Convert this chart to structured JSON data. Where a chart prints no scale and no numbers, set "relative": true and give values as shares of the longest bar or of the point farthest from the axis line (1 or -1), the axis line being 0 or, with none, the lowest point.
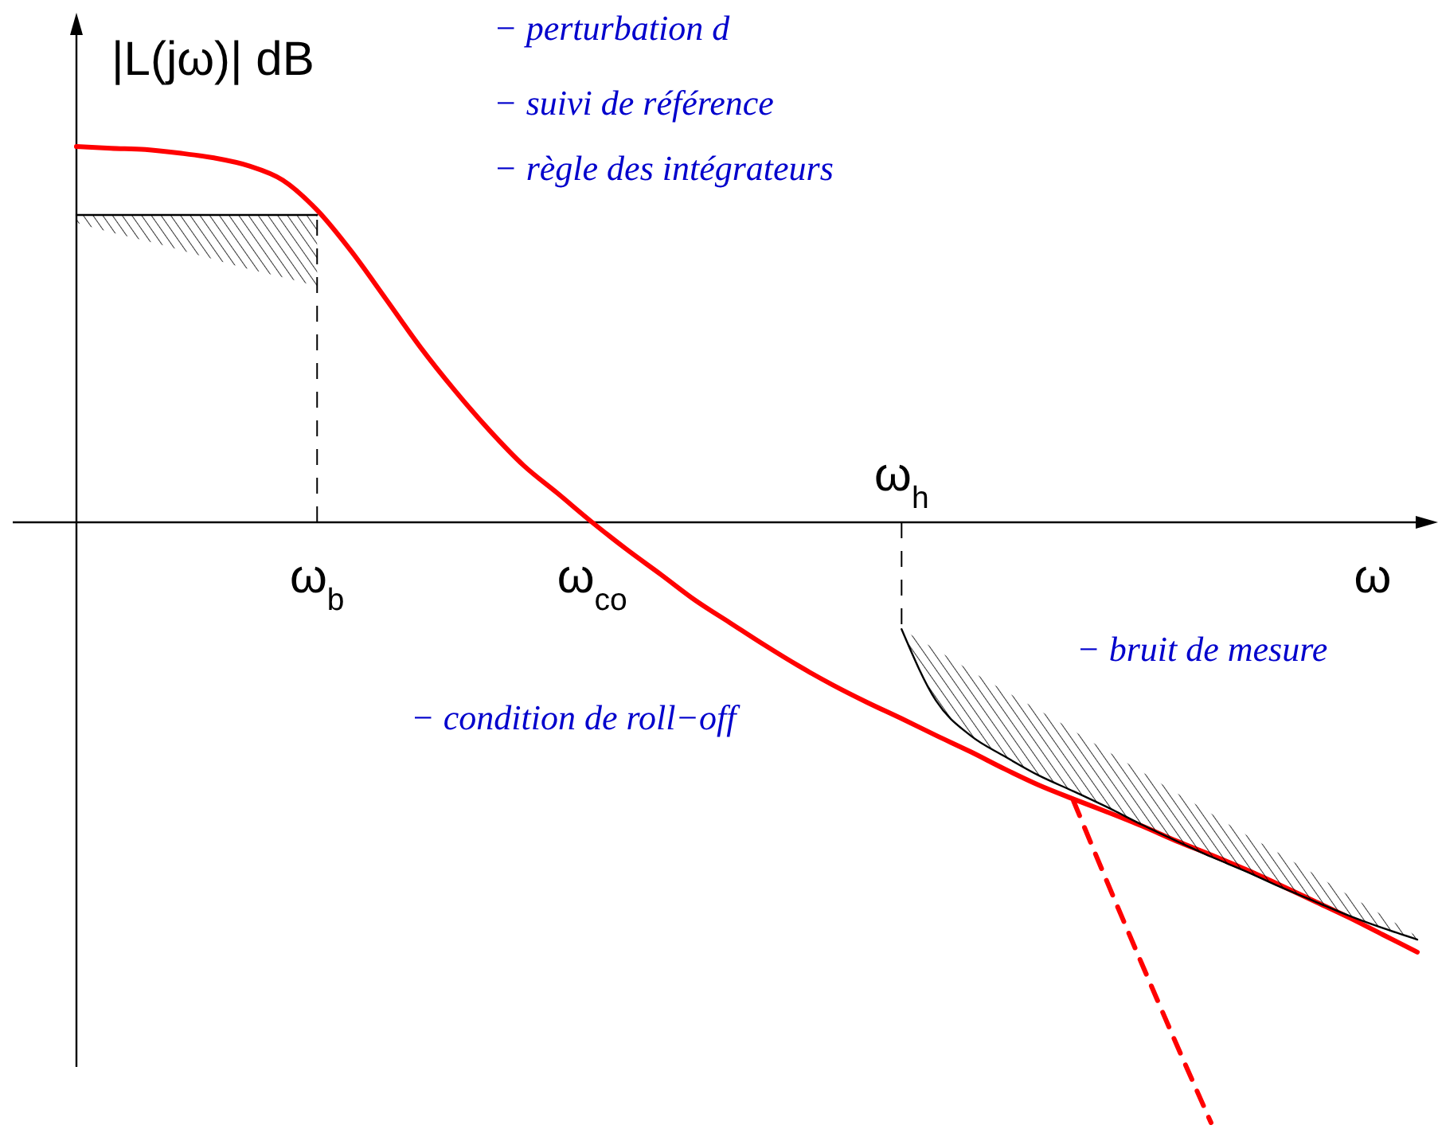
{
  "chart_data": {
    "type": "line",
    "relative": true,
    "ylabel": "|L(jω)| dB",
    "xlabel": "ω",
    "categories": [
      null,
      null,
      null,
      null,
      null,
      null,
      null,
      "ω$_{b}$",
      null,
      null,
      null,
      null,
      null,
      null,
      null,
      "ω$_{co}$",
      null,
      null,
      null,
      null,
      null,
      null,
      null,
      null,
      "ω$_{h}$",
      null,
      null,
      null,
      null,
      null,
      null,
      null,
      null,
      null,
      null,
      null,
      null,
      null,
      null,
      null
    ],
    "series": [
      {
        "color": "#ff0000",
        "line_style": "solid",
        "values": [
          0.626,
          0.623,
          0.621,
          0.615,
          0.607,
          0.594,
          0.57,
          0.52,
          0.451,
          0.372,
          0.292,
          0.22,
          0.154,
          0.095,
          0.048,
          0,
          -0.045,
          -0.087,
          -0.13,
          -0.167,
          -0.204,
          -0.239,
          -0.271,
          -0.3,
          -0.327,
          -0.355,
          -0.382,
          -0.411,
          -0.438,
          -0.461,
          -0.483,
          -0.506,
          -0.531,
          -0.554,
          -0.578,
          -0.604,
          -0.631,
          -0.658,
          -0.687,
          -0.716
        ]
      },
      {
        "color": "#ff0000",
        "line_style": "dashed",
        "values": [
          null,
          null,
          null,
          null,
          null,
          null,
          null,
          null,
          null,
          null,
          null,
          null,
          null,
          null,
          null,
          null,
          null,
          null,
          null,
          null,
          null,
          null,
          null,
          null,
          null,
          null,
          null,
          null,
          null,
          -0.464,
          -0.602,
          -0.737,
          -0.87,
          -1,
          null,
          null,
          null,
          null,
          null,
          null
        ]
      },
      {
        "color": "#000000",
        "line_style": "solid",
        "values": [
          0.512,
          0.512,
          0.512,
          0.512,
          0.512,
          0.512,
          0.512,
          0.512,
          null,
          null,
          null,
          null,
          null,
          null,
          null,
          null,
          null,
          null,
          null,
          null,
          null,
          null,
          null,
          null,
          null,
          null,
          null,
          null,
          null,
          null,
          null,
          null,
          null,
          null,
          null,
          null,
          null,
          null,
          null,
          null
        ],
        "lower": [
          0.499,
          0.483,
          0.469,
          0.454,
          0.438,
          0.422,
          0.408,
          0.393,
          null,
          null,
          null,
          null,
          null,
          null,
          null,
          null,
          null,
          null,
          null,
          null,
          null,
          null,
          null,
          null,
          null,
          null,
          null,
          null,
          null,
          null,
          null,
          null,
          null,
          null,
          null,
          null,
          null,
          null,
          null,
          null
        ],
        "upper": [
          0.512,
          0.512,
          0.512,
          0.512,
          0.512,
          0.512,
          0.512,
          0.512,
          null,
          null,
          null,
          null,
          null,
          null,
          null,
          null,
          null,
          null,
          null,
          null,
          null,
          null,
          null,
          null,
          null,
          null,
          null,
          null,
          null,
          null,
          null,
          null,
          null,
          null,
          null,
          null,
          null,
          null,
          null,
          null
        ]
      },
      {
        "color": "#000000",
        "line_style": "solid",
        "values": [
          null,
          null,
          null,
          null,
          null,
          null,
          null,
          null,
          null,
          null,
          null,
          null,
          null,
          null,
          null,
          null,
          null,
          null,
          null,
          null,
          null,
          null,
          null,
          null,
          -0.178,
          -0.297,
          -0.355,
          -0.39,
          -0.422,
          -0.448,
          -0.475,
          -0.504,
          -0.531,
          -0.557,
          -0.581,
          -0.607,
          -0.631,
          -0.655,
          -0.676,
          -0.695
        ],
        "lower": [
          null,
          null,
          null,
          null,
          null,
          null,
          null,
          null,
          null,
          null,
          null,
          null,
          null,
          null,
          null,
          null,
          null,
          null,
          null,
          null,
          null,
          null,
          null,
          null,
          -0.178,
          -0.297,
          -0.355,
          -0.39,
          -0.422,
          -0.448,
          -0.475,
          -0.504,
          -0.531,
          -0.557,
          -0.581,
          -0.607,
          -0.631,
          -0.655,
          -0.676,
          -0.695
        ],
        "upper": [
          null,
          null,
          null,
          null,
          null,
          null,
          null,
          null,
          null,
          null,
          null,
          null,
          null,
          null,
          null,
          null,
          null,
          null,
          null,
          null,
          null,
          null,
          null,
          null,
          -0.178,
          -0.212,
          -0.247,
          -0.281,
          -0.313,
          -0.347,
          -0.382,
          -0.416,
          -0.451,
          -0.485,
          -0.52,
          -0.552,
          -0.586,
          -0.621,
          -0.655,
          -0.69
        ]
      }
    ],
    "ref_lines": [
      {
        "axis": "x",
        "value": "ω$_{b}$",
        "line_style": "dashed",
        "color": "#000000"
      },
      {
        "axis": "x",
        "value": "ω$_{h}$",
        "line_style": "dashed",
        "color": "#000000"
      }
    ],
    "annotations": [
      "− perturbation d",
      "− suivi de référence",
      "− règle des intégrateurs",
      "− bruit de mesure",
      "− condition de roll−off"
    ]
  }
}
